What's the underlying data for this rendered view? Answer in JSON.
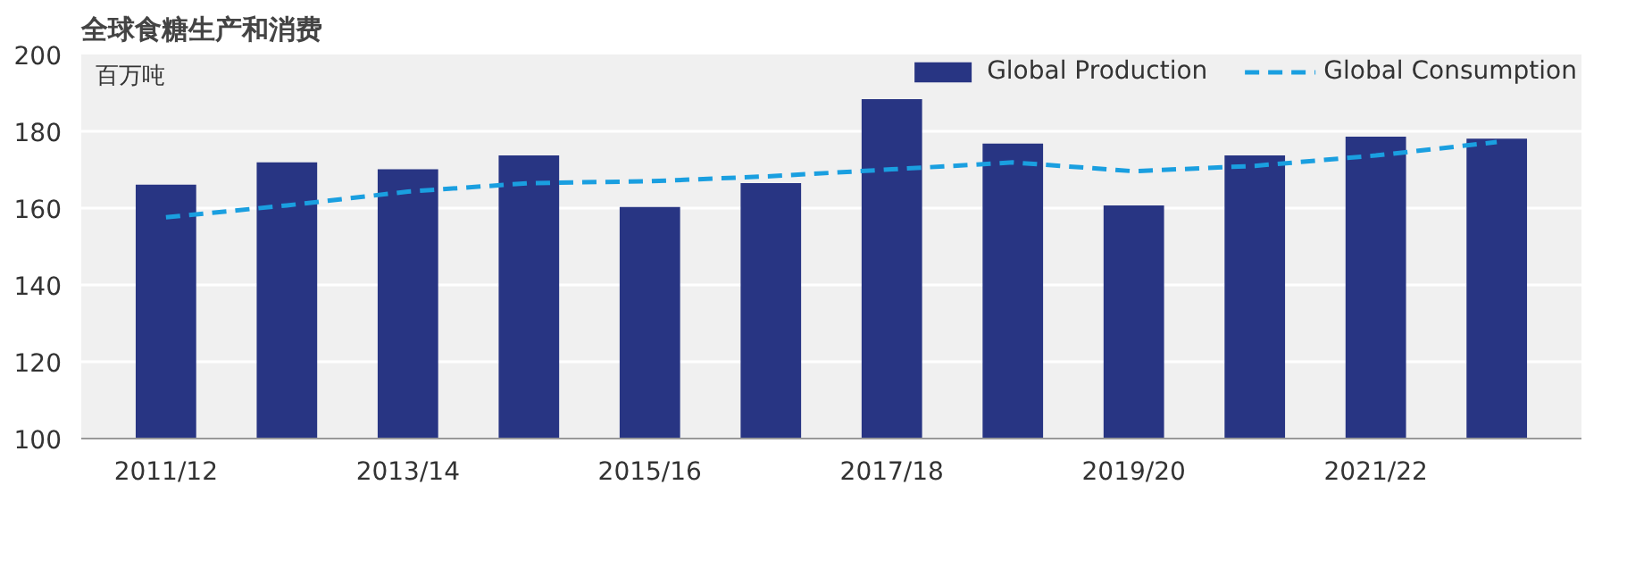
{
  "chart_data": {
    "type": "bar",
    "title": "全球食糖生产和消费",
    "ylabel": "百万吨",
    "categories": [
      "2011/12",
      null,
      "2013/14",
      null,
      "2015/16",
      null,
      "2017/18",
      null,
      "2019/20",
      null,
      "2021/22",
      null
    ],
    "series": [
      {
        "name": "Global Production",
        "color": "#283583",
        "values": [
          166.1,
          171.9,
          170.1,
          173.7,
          160.3,
          166.5,
          188.4,
          176.8,
          160.7,
          173.7,
          178.6,
          178.1
        ]
      },
      {
        "name": "Global Consumption",
        "type": "line",
        "color": "#1a9fe0",
        "line_style": "dashed",
        "values": [
          157.6,
          160.7,
          164.3,
          166.5,
          167.0,
          168.3,
          170.1,
          171.9,
          169.6,
          171.0,
          173.7,
          177.2
        ]
      }
    ],
    "ylim": [
      100,
      200
    ],
    "yticks": [
      100,
      120,
      140,
      160,
      180,
      200
    ],
    "grid": "y",
    "legend": "top right"
  }
}
